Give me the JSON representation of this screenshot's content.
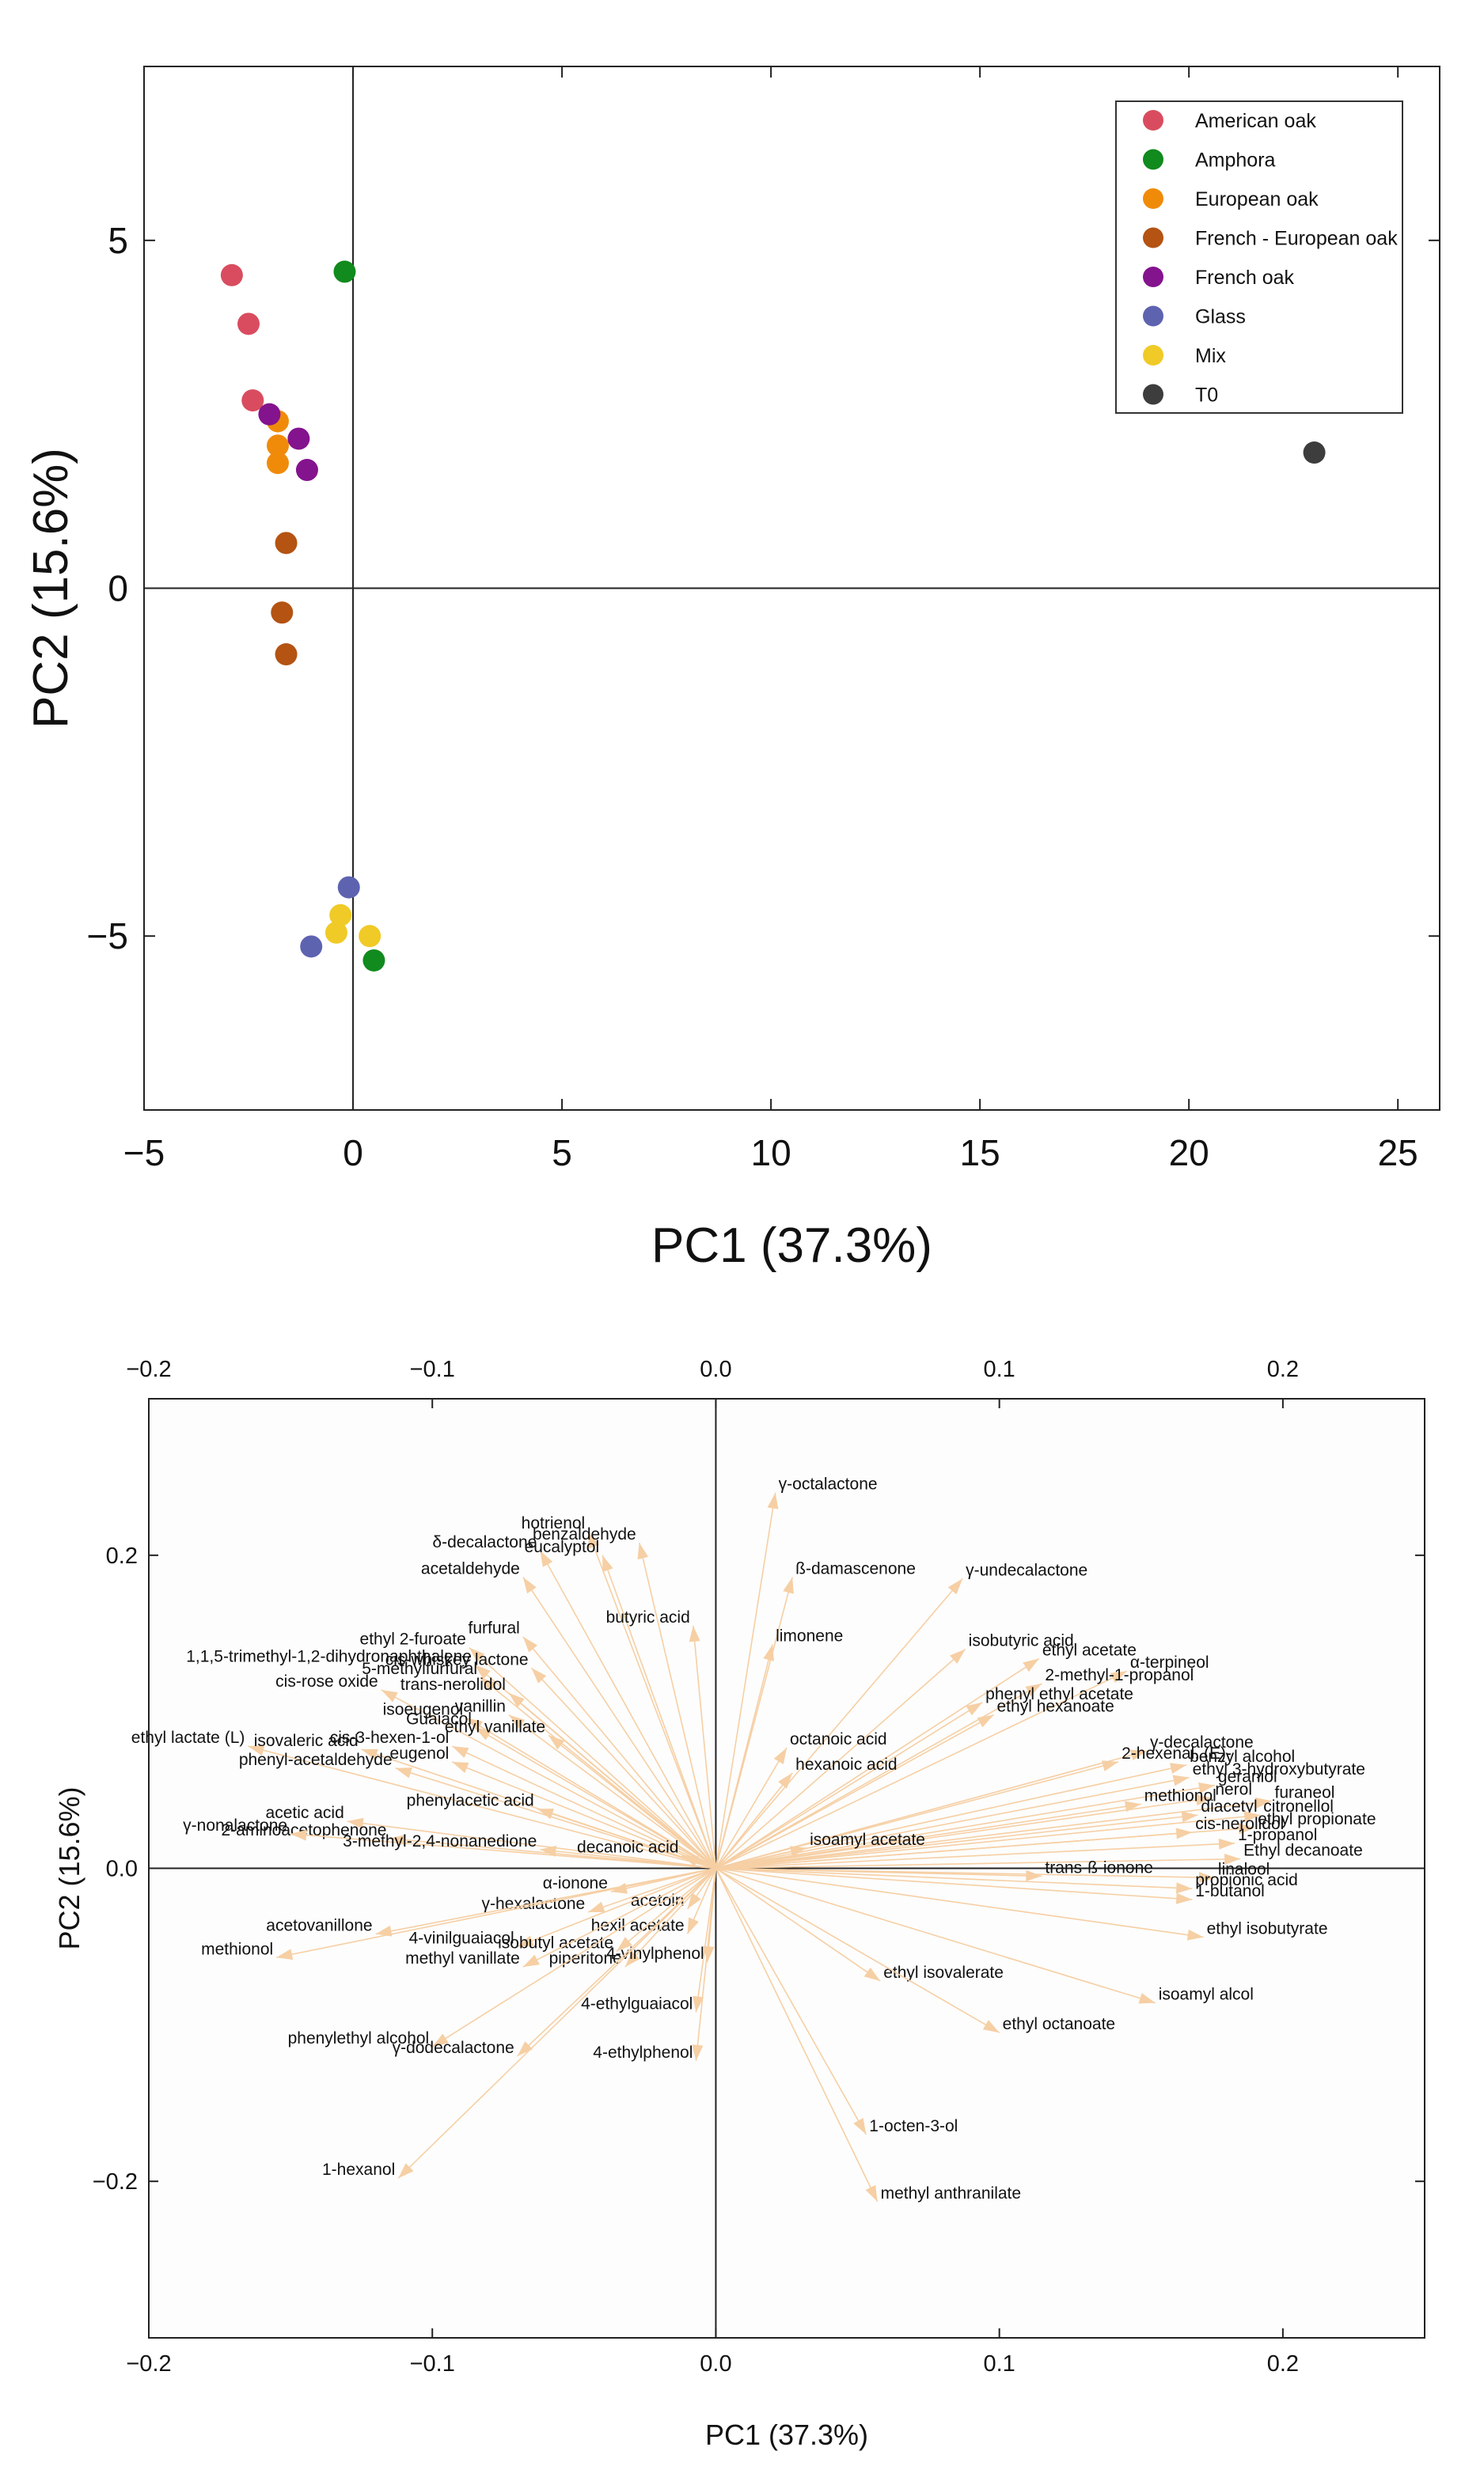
{
  "chart_data": [
    {
      "type": "scatter",
      "xlabel": "PC1 (37.3%)",
      "ylabel": "PC2 (15.6%)",
      "xlim": [
        -5,
        26
      ],
      "ylim": [
        -7.5,
        7.5
      ],
      "xticks": [
        -5,
        0,
        5,
        10,
        15,
        20,
        25
      ],
      "yticks": [
        -5,
        0,
        5
      ],
      "zero_lines": true,
      "legend_position": "top-right",
      "series": [
        {
          "name": "American oak",
          "color": "#d94c5f",
          "points": [
            [
              -2.9,
              4.5
            ],
            [
              -2.5,
              3.8
            ],
            [
              -2.4,
              2.7
            ]
          ]
        },
        {
          "name": "Amphora",
          "color": "#118a1e",
          "points": [
            [
              -0.2,
              4.55
            ],
            [
              0.5,
              -5.35
            ]
          ]
        },
        {
          "name": "European oak",
          "color": "#f08b0a",
          "points": [
            [
              -1.8,
              2.4
            ],
            [
              -1.8,
              2.05
            ],
            [
              -1.8,
              1.8
            ]
          ]
        },
        {
          "name": "French - European oak",
          "color": "#b45312",
          "points": [
            [
              -1.6,
              0.65
            ],
            [
              -1.7,
              -0.35
            ],
            [
              -1.6,
              -0.95
            ]
          ]
        },
        {
          "name": "French oak",
          "color": "#84138e",
          "points": [
            [
              -2.0,
              2.5
            ],
            [
              -1.3,
              2.15
            ],
            [
              -1.1,
              1.7
            ]
          ]
        },
        {
          "name": "Glass",
          "color": "#5e63b0",
          "points": [
            [
              -0.1,
              -4.3
            ],
            [
              -1.0,
              -5.15
            ]
          ]
        },
        {
          "name": "Mix",
          "color": "#f0ca26",
          "points": [
            [
              -0.3,
              -4.7
            ],
            [
              -0.4,
              -4.95
            ],
            [
              0.4,
              -5.0
            ]
          ]
        },
        {
          "name": "T0",
          "color": "#3d3d3d",
          "points": [
            [
              23.0,
              1.95
            ]
          ]
        }
      ]
    },
    {
      "type": "scatter",
      "subtype": "loading-vectors",
      "xlabel": "PC1 (37.3%)",
      "ylabel": "PC2 (15.6%)",
      "xlim": [
        -0.2,
        0.25
      ],
      "ylim": [
        -0.3,
        0.3
      ],
      "xticks": [
        -0.2,
        -0.1,
        0.0,
        0.1,
        0.2
      ],
      "xtick_labels": [
        "−0.2",
        "−0.1",
        "0.0",
        "0.1",
        "0.2"
      ],
      "yticks": [
        -0.2,
        0.0,
        0.2
      ],
      "ytick_labels": [
        "−0.2",
        "0.0",
        "0.2"
      ],
      "arrow_color": "#f6cfa4",
      "zero_lines": true,
      "variables": [
        {
          "name": "γ-octalactone",
          "x": 0.021,
          "y": 0.24
        },
        {
          "name": "hotrienol",
          "x": -0.045,
          "y": 0.215
        },
        {
          "name": "benzaldehyde",
          "x": -0.027,
          "y": 0.208
        },
        {
          "name": "δ-decalactone",
          "x": -0.062,
          "y": 0.203
        },
        {
          "name": "eucalyptol",
          "x": -0.04,
          "y": 0.2
        },
        {
          "name": "acetaldehyde",
          "x": -0.068,
          "y": 0.186
        },
        {
          "name": "ß-damascenone",
          "x": 0.027,
          "y": 0.186
        },
        {
          "name": "γ-undecalactone",
          "x": 0.087,
          "y": 0.185
        },
        {
          "name": "butyric acid",
          "x": -0.008,
          "y": 0.155
        },
        {
          "name": "furfural",
          "x": -0.068,
          "y": 0.148
        },
        {
          "name": "limonene",
          "x": 0.02,
          "y": 0.143
        },
        {
          "name": "ethyl 2-furoate",
          "x": -0.087,
          "y": 0.141
        },
        {
          "name": "isobutyric acid",
          "x": 0.088,
          "y": 0.14
        },
        {
          "name": "ethyl acetate",
          "x": 0.114,
          "y": 0.134
        },
        {
          "name": "1,1,5-trimethyl-1,2-dihydronaphthalene",
          "x": -0.085,
          "y": 0.13
        },
        {
          "name": "cis-whiskey lactone",
          "x": -0.065,
          "y": 0.128
        },
        {
          "name": "α-terpineol",
          "x": 0.145,
          "y": 0.126
        },
        {
          "name": "5-methylfurfural",
          "x": -0.083,
          "y": 0.122
        },
        {
          "name": "2-methyl-1-propanol",
          "x": 0.115,
          "y": 0.118
        },
        {
          "name": "cis-rose oxide",
          "x": -0.118,
          "y": 0.114
        },
        {
          "name": "trans-nerolidol",
          "x": -0.073,
          "y": 0.112
        },
        {
          "name": "phenyl ethyl acetate",
          "x": 0.094,
          "y": 0.106
        },
        {
          "name": "ethyl hexanoate",
          "x": 0.098,
          "y": 0.098
        },
        {
          "name": "isoeugenol",
          "x": -0.088,
          "y": 0.096
        },
        {
          "name": "vanillin",
          "x": -0.073,
          "y": 0.098
        },
        {
          "name": "Guaiacol",
          "x": -0.085,
          "y": 0.09
        },
        {
          "name": "ethyl vanillate",
          "x": -0.059,
          "y": 0.085
        },
        {
          "name": "octanoic acid",
          "x": 0.025,
          "y": 0.077
        },
        {
          "name": "ethyl lactate (L)",
          "x": -0.165,
          "y": 0.078
        },
        {
          "name": "cis-3-hexen-1-ol",
          "x": -0.093,
          "y": 0.078
        },
        {
          "name": "isovaleric acid",
          "x": -0.125,
          "y": 0.076
        },
        {
          "name": "eugenol",
          "x": -0.093,
          "y": 0.068
        },
        {
          "name": "γ-decalactone",
          "x": 0.152,
          "y": 0.075
        },
        {
          "name": "hexanoic acid",
          "x": 0.027,
          "y": 0.061
        },
        {
          "name": "phenyl-acetaldehyde",
          "x": -0.113,
          "y": 0.064
        },
        {
          "name": "2-hexenal, (E)-",
          "x": 0.142,
          "y": 0.068
        },
        {
          "name": "benzyl alcohol",
          "x": 0.166,
          "y": 0.066
        },
        {
          "name": "ethyl 3-hydroxybutyrate",
          "x": 0.167,
          "y": 0.058
        },
        {
          "name": "geraniol",
          "x": 0.176,
          "y": 0.053
        },
        {
          "name": "nerol",
          "x": 0.175,
          "y": 0.045
        },
        {
          "name": "furaneol",
          "x": 0.196,
          "y": 0.043
        },
        {
          "name": "methionol",
          "x": 0.15,
          "y": 0.041
        },
        {
          "name": "phenylacetic acid",
          "x": -0.063,
          "y": 0.038
        },
        {
          "name": "diacetyl",
          "x": 0.17,
          "y": 0.034
        },
        {
          "name": "citronellol",
          "x": 0.192,
          "y": 0.034
        },
        {
          "name": "acetic acid",
          "x": -0.13,
          "y": 0.03
        },
        {
          "name": "ethyl propionate",
          "x": 0.19,
          "y": 0.026
        },
        {
          "name": "2-aminoacetophenone",
          "x": -0.115,
          "y": 0.019
        },
        {
          "name": "γ-nonalactone",
          "x": -0.15,
          "y": 0.022
        },
        {
          "name": "cis-nerolidol",
          "x": 0.168,
          "y": 0.023
        },
        {
          "name": "isoamyl acetate",
          "x": 0.032,
          "y": 0.013
        },
        {
          "name": "3-methyl-2,4-nonanedione",
          "x": -0.062,
          "y": 0.012
        },
        {
          "name": "1-propanol",
          "x": 0.183,
          "y": 0.016
        },
        {
          "name": "decanoic acid",
          "x": -0.012,
          "y": 0.008
        },
        {
          "name": "Ethyl decanoate",
          "x": 0.185,
          "y": 0.006
        },
        {
          "name": "trans-ß-ionone",
          "x": 0.115,
          "y": -0.005
        },
        {
          "name": "linalool",
          "x": 0.176,
          "y": -0.006
        },
        {
          "name": "propionic acid",
          "x": 0.168,
          "y": -0.013
        },
        {
          "name": "α-ionone",
          "x": -0.037,
          "y": -0.015
        },
        {
          "name": "1-butanol",
          "x": 0.168,
          "y": -0.02
        },
        {
          "name": "acetoin",
          "x": -0.01,
          "y": -0.026
        },
        {
          "name": "γ-hexalactone",
          "x": -0.045,
          "y": -0.028
        },
        {
          "name": "acetovanillone",
          "x": -0.12,
          "y": -0.042
        },
        {
          "name": "hexil acetate",
          "x": -0.01,
          "y": -0.042
        },
        {
          "name": "ethyl isobutyrate",
          "x": 0.172,
          "y": -0.044
        },
        {
          "name": "4-vinilguaiacol",
          "x": -0.07,
          "y": -0.05
        },
        {
          "name": "isobutyl acetate",
          "x": -0.035,
          "y": -0.053
        },
        {
          "name": "methionol",
          "x": -0.155,
          "y": -0.057
        },
        {
          "name": "methyl vanillate",
          "x": -0.068,
          "y": -0.063
        },
        {
          "name": "piperitone",
          "x": -0.032,
          "y": -0.063
        },
        {
          "name": "4-vinylphenol",
          "x": -0.003,
          "y": -0.06
        },
        {
          "name": "ethyl isovalerate",
          "x": 0.058,
          "y": -0.072
        },
        {
          "name": "isoamyl alcol",
          "x": 0.155,
          "y": -0.086
        },
        {
          "name": "4-ethylguaiacol",
          "x": -0.007,
          "y": -0.092
        },
        {
          "name": "ethyl octanoate",
          "x": 0.1,
          "y": -0.105
        },
        {
          "name": "phenylethyl alcohol",
          "x": -0.1,
          "y": -0.114
        },
        {
          "name": "4-ethylphenol",
          "x": -0.007,
          "y": -0.123
        },
        {
          "name": "γ-dodecalactone",
          "x": -0.07,
          "y": -0.12
        },
        {
          "name": "1-octen-3-ol",
          "x": 0.053,
          "y": -0.17
        },
        {
          "name": "1-hexanol",
          "x": -0.112,
          "y": -0.198
        },
        {
          "name": "methyl anthranilate",
          "x": 0.057,
          "y": -0.213
        }
      ]
    }
  ]
}
